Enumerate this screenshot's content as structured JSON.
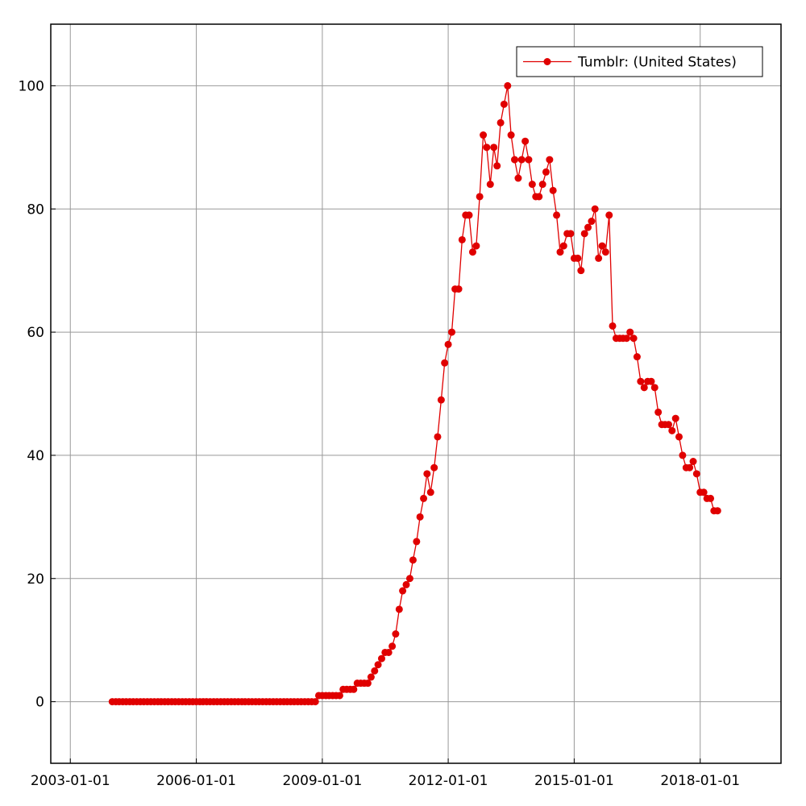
{
  "chart_data": {
    "type": "line",
    "x": [
      "2004-01-01",
      "2004-02-01",
      "2004-03-01",
      "2004-04-01",
      "2004-05-01",
      "2004-06-01",
      "2004-07-01",
      "2004-08-01",
      "2004-09-01",
      "2004-10-01",
      "2004-11-01",
      "2004-12-01",
      "2005-01-01",
      "2005-02-01",
      "2005-03-01",
      "2005-04-01",
      "2005-05-01",
      "2005-06-01",
      "2005-07-01",
      "2005-08-01",
      "2005-09-01",
      "2005-10-01",
      "2005-11-01",
      "2005-12-01",
      "2006-01-01",
      "2006-02-01",
      "2006-03-01",
      "2006-04-01",
      "2006-05-01",
      "2006-06-01",
      "2006-07-01",
      "2006-08-01",
      "2006-09-01",
      "2006-10-01",
      "2006-11-01",
      "2006-12-01",
      "2007-01-01",
      "2007-02-01",
      "2007-03-01",
      "2007-04-01",
      "2007-05-01",
      "2007-06-01",
      "2007-07-01",
      "2007-08-01",
      "2007-09-01",
      "2007-10-01",
      "2007-11-01",
      "2007-12-01",
      "2008-01-01",
      "2008-02-01",
      "2008-03-01",
      "2008-04-01",
      "2008-05-01",
      "2008-06-01",
      "2008-07-01",
      "2008-08-01",
      "2008-09-01",
      "2008-10-01",
      "2008-11-01",
      "2008-12-01",
      "2009-01-01",
      "2009-02-01",
      "2009-03-01",
      "2009-04-01",
      "2009-05-01",
      "2009-06-01",
      "2009-07-01",
      "2009-08-01",
      "2009-09-01",
      "2009-10-01",
      "2009-11-01",
      "2009-12-01",
      "2010-01-01",
      "2010-02-01",
      "2010-03-01",
      "2010-04-01",
      "2010-05-01",
      "2010-06-01",
      "2010-07-01",
      "2010-08-01",
      "2010-09-01",
      "2010-10-01",
      "2010-11-01",
      "2010-12-01",
      "2011-01-01",
      "2011-02-01",
      "2011-03-01",
      "2011-04-01",
      "2011-05-01",
      "2011-06-01",
      "2011-07-01",
      "2011-08-01",
      "2011-09-01",
      "2011-10-01",
      "2011-11-01",
      "2011-12-01",
      "2012-01-01",
      "2012-02-01",
      "2012-03-01",
      "2012-04-01",
      "2012-05-01",
      "2012-06-01",
      "2012-07-01",
      "2012-08-01",
      "2012-09-01",
      "2012-10-01",
      "2012-11-01",
      "2012-12-01",
      "2013-01-01",
      "2013-02-01",
      "2013-03-01",
      "2013-04-01",
      "2013-05-01",
      "2013-06-01",
      "2013-07-01",
      "2013-08-01",
      "2013-09-01",
      "2013-10-01",
      "2013-11-01",
      "2013-12-01",
      "2014-01-01",
      "2014-02-01",
      "2014-03-01",
      "2014-04-01",
      "2014-05-01",
      "2014-06-01",
      "2014-07-01",
      "2014-08-01",
      "2014-09-01",
      "2014-10-01",
      "2014-11-01",
      "2014-12-01",
      "2015-01-01",
      "2015-02-01",
      "2015-03-01",
      "2015-04-01",
      "2015-05-01",
      "2015-06-01",
      "2015-07-01",
      "2015-08-01",
      "2015-09-01",
      "2015-10-01",
      "2015-11-01",
      "2015-12-01",
      "2016-01-01",
      "2016-02-01",
      "2016-03-01",
      "2016-04-01",
      "2016-05-01",
      "2016-06-01",
      "2016-07-01",
      "2016-08-01",
      "2016-09-01",
      "2016-10-01",
      "2016-11-01",
      "2016-12-01",
      "2017-01-01",
      "2017-02-01",
      "2017-03-01",
      "2017-04-01",
      "2017-05-01",
      "2017-06-01",
      "2017-07-01",
      "2017-08-01",
      "2017-09-01",
      "2017-10-01",
      "2017-11-01",
      "2017-12-01",
      "2018-01-01",
      "2018-02-01",
      "2018-03-01",
      "2018-04-01",
      "2018-05-01",
      "2018-06-01"
    ],
    "series": [
      {
        "name": "Tumblr: (United States)",
        "color": "#e00000",
        "values": [
          0,
          0,
          0,
          0,
          0,
          0,
          0,
          0,
          0,
          0,
          0,
          0,
          0,
          0,
          0,
          0,
          0,
          0,
          0,
          0,
          0,
          0,
          0,
          0,
          0,
          0,
          0,
          0,
          0,
          0,
          0,
          0,
          0,
          0,
          0,
          0,
          0,
          0,
          0,
          0,
          0,
          0,
          0,
          0,
          0,
          0,
          0,
          0,
          0,
          0,
          0,
          0,
          0,
          0,
          0,
          0,
          0,
          0,
          0,
          1,
          1,
          1,
          1,
          1,
          1,
          1,
          2,
          2,
          2,
          2,
          3,
          3,
          3,
          3,
          4,
          5,
          6,
          7,
          8,
          8,
          9,
          11,
          15,
          18,
          19,
          20,
          23,
          26,
          30,
          33,
          37,
          34,
          38,
          43,
          49,
          55,
          58,
          60,
          67,
          67,
          75,
          79,
          79,
          73,
          74,
          82,
          92,
          90,
          84,
          90,
          87,
          94,
          97,
          100,
          92,
          88,
          85,
          88,
          91,
          88,
          84,
          82,
          82,
          84,
          86,
          88,
          83,
          79,
          73,
          74,
          76,
          76,
          72,
          72,
          70,
          76,
          77,
          78,
          80,
          72,
          74,
          73,
          79,
          61,
          59,
          59,
          59,
          59,
          60,
          59,
          56,
          52,
          51,
          52,
          52,
          51,
          47,
          45,
          45,
          45,
          44,
          46,
          43,
          40,
          38,
          38,
          39,
          37,
          34,
          34,
          33,
          33,
          31,
          31
        ]
      }
    ],
    "xlim": [
      "2002-07-15",
      "2019-12-05"
    ],
    "xticks": [
      "2003-01-01",
      "2006-01-01",
      "2009-01-01",
      "2012-01-01",
      "2015-01-01",
      "2018-01-01"
    ],
    "ylim": [
      -10,
      110
    ],
    "yticks": [
      0,
      20,
      40,
      60,
      80,
      100
    ],
    "grid": true,
    "legend": "upper right"
  }
}
